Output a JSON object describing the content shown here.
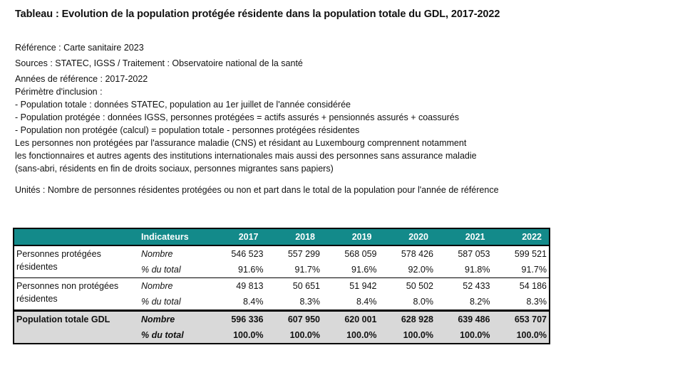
{
  "title": "Tableau : Evolution de la population protégée résidente dans la population totale du GDL, 2017-2022",
  "reference": "Référence : Carte sanitaire 2023",
  "sources": "Sources : STATEC, IGSS / Traitement : Observatoire national de la santé",
  "notes": [
    "Années de référence : 2017-2022",
    "Périmètre d'inclusion :",
    "- Population totale : données STATEC, population au 1er juillet de l'année considérée",
    "- Population protégée : données IGSS, personnes protégées = actifs assurés + pensionnés assurés + coassurés",
    "- Population non protégée (calcul) = population totale - personnes protégées résidentes",
    "Les personnes non protégées par l'assurance maladie (CNS) et résidant au Luxembourg comprennent notamment",
    "les fonctionnaires et autres agents des institutions internationales mais aussi des personnes sans assurance maladie",
    "(sans-abri, résidents en fin de droits sociaux, personnes migrantes sans papiers)"
  ],
  "units": "Unités : Nombre de personnes résidentes protégées ou non et part dans le total de la population pour l'année de référence",
  "table": {
    "header": {
      "indicator_label": "Indicateurs",
      "years": [
        "2017",
        "2018",
        "2019",
        "2020",
        "2021",
        "2022"
      ]
    },
    "groups": [
      {
        "label_line1": "Personnes protégées",
        "label_line2": "résidentes",
        "rows": [
          {
            "indicator": "Nombre",
            "values": [
              "546 523",
              "557 299",
              "568 059",
              "578 426",
              "587 053",
              "599 521"
            ]
          },
          {
            "indicator": "% du total",
            "values": [
              "91.6%",
              "91.7%",
              "91.6%",
              "92.0%",
              "91.8%",
              "91.7%"
            ]
          }
        ]
      },
      {
        "label_line1": "Personnes non protégées",
        "label_line2": "résidentes",
        "rows": [
          {
            "indicator": "Nombre",
            "values": [
              "49 813",
              "50 651",
              "51 942",
              "50 502",
              "52 433",
              "54 186"
            ]
          },
          {
            "indicator": "% du total",
            "values": [
              "8.4%",
              "8.3%",
              "8.4%",
              "8.0%",
              "8.2%",
              "8.3%"
            ]
          }
        ]
      },
      {
        "label_line1": "Population totale GDL",
        "label_line2": "",
        "rows": [
          {
            "indicator": "Nombre",
            "values": [
              "596 336",
              "607 950",
              "620 001",
              "628 928",
              "639 486",
              "653 707"
            ]
          },
          {
            "indicator": "% du total",
            "values": [
              "100.0%",
              "100.0%",
              "100.0%",
              "100.0%",
              "100.0%",
              "100.0%"
            ]
          }
        ]
      }
    ]
  },
  "colors": {
    "header_bg": "#138a8a",
    "total_bg": "#d9d9d9"
  }
}
